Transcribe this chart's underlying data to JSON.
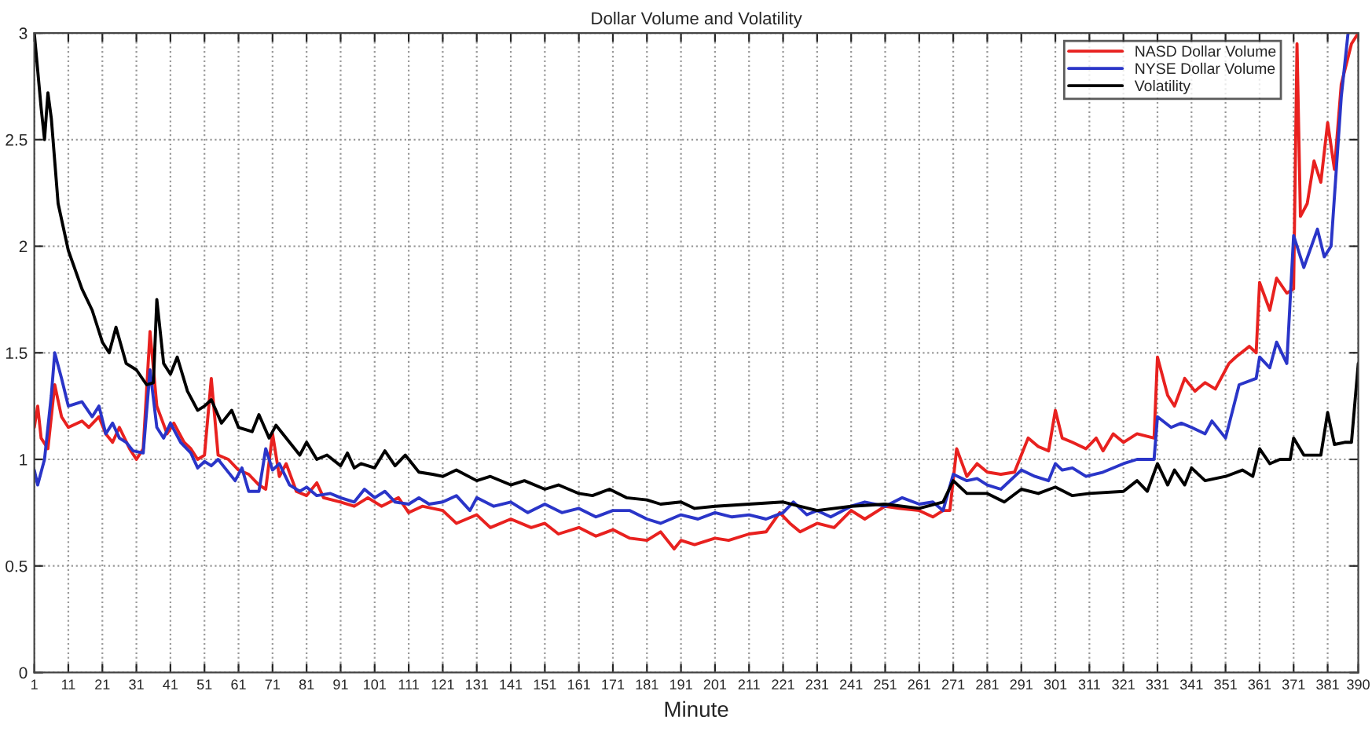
{
  "chart_data": {
    "type": "line",
    "title": "Dollar Volume and Volatility",
    "xlabel": "Minute",
    "xlim": [
      1,
      390
    ],
    "xticks": [
      1,
      11,
      21,
      31,
      41,
      51,
      61,
      71,
      81,
      91,
      101,
      111,
      121,
      131,
      141,
      151,
      161,
      171,
      181,
      191,
      201,
      211,
      221,
      231,
      241,
      251,
      261,
      271,
      281,
      291,
      301,
      311,
      321,
      331,
      341,
      351,
      361,
      371,
      381,
      390
    ],
    "ylim": [
      0,
      3
    ],
    "yticks": [
      0,
      0.5,
      1,
      1.5,
      2,
      2.5,
      3
    ],
    "grid": true,
    "legend": "top right",
    "line_style": "solid",
    "marker": "none",
    "series": [
      {
        "name": "NASD Dollar Volume",
        "color": "#e8211f",
        "x": [
          1,
          2,
          3,
          5,
          7,
          9,
          11,
          15,
          17,
          20,
          22,
          24,
          26,
          29,
          31,
          33,
          35,
          37,
          40,
          42,
          45,
          47,
          49,
          51,
          53,
          55,
          58,
          61,
          64,
          67,
          69,
          71,
          73,
          75,
          78,
          81,
          84,
          86,
          91,
          95,
          99,
          103,
          108,
          111,
          115,
          121,
          125,
          131,
          135,
          141,
          147,
          151,
          155,
          161,
          166,
          171,
          176,
          181,
          185,
          189,
          191,
          195,
          201,
          205,
          211,
          216,
          220,
          223,
          226,
          231,
          236,
          241,
          245,
          251,
          255,
          261,
          265,
          268,
          270,
          272,
          275,
          278,
          281,
          285,
          289,
          291,
          293,
          296,
          299,
          301,
          303,
          306,
          310,
          313,
          315,
          318,
          321,
          325,
          330,
          331,
          334,
          336,
          339,
          342,
          345,
          348,
          352,
          354,
          358,
          360,
          361,
          364,
          366,
          369,
          371,
          372,
          373,
          375,
          377,
          379,
          381,
          383,
          385,
          388,
          390
        ],
        "values": [
          1.15,
          1.25,
          1.1,
          1.05,
          1.35,
          1.2,
          1.15,
          1.18,
          1.15,
          1.2,
          1.12,
          1.08,
          1.15,
          1.05,
          1.0,
          1.05,
          1.6,
          1.25,
          1.12,
          1.17,
          1.08,
          1.05,
          1.0,
          1.02,
          1.38,
          1.02,
          1.0,
          0.95,
          0.93,
          0.88,
          0.86,
          1.12,
          0.92,
          0.98,
          0.85,
          0.83,
          0.89,
          0.82,
          0.8,
          0.78,
          0.82,
          0.78,
          0.82,
          0.75,
          0.78,
          0.76,
          0.7,
          0.74,
          0.68,
          0.72,
          0.68,
          0.7,
          0.65,
          0.68,
          0.64,
          0.67,
          0.63,
          0.62,
          0.66,
          0.58,
          0.62,
          0.6,
          0.63,
          0.62,
          0.65,
          0.66,
          0.75,
          0.7,
          0.66,
          0.7,
          0.68,
          0.76,
          0.72,
          0.78,
          0.77,
          0.76,
          0.73,
          0.76,
          0.76,
          1.05,
          0.92,
          0.98,
          0.94,
          0.93,
          0.94,
          1.02,
          1.1,
          1.06,
          1.04,
          1.23,
          1.1,
          1.08,
          1.05,
          1.1,
          1.04,
          1.12,
          1.08,
          1.12,
          1.1,
          1.48,
          1.3,
          1.25,
          1.38,
          1.32,
          1.36,
          1.33,
          1.45,
          1.48,
          1.53,
          1.5,
          1.83,
          1.7,
          1.85,
          1.78,
          1.8,
          2.95,
          2.14,
          2.2,
          2.4,
          2.3,
          2.58,
          2.36,
          2.76,
          2.95,
          3.0
        ]
      },
      {
        "name": "NYSE Dollar Volume",
        "color": "#2a35c8",
        "x": [
          1,
          2,
          4,
          6,
          7,
          9,
          11,
          15,
          18,
          20,
          22,
          24,
          26,
          28,
          30,
          33,
          35,
          37,
          39,
          41,
          44,
          47,
          49,
          51,
          53,
          55,
          57,
          60,
          62,
          64,
          67,
          69,
          71,
          73,
          76,
          79,
          81,
          84,
          88,
          91,
          95,
          98,
          101,
          104,
          107,
          111,
          114,
          117,
          121,
          125,
          129,
          131,
          136,
          141,
          146,
          151,
          156,
          161,
          166,
          171,
          176,
          181,
          185,
          191,
          196,
          201,
          206,
          211,
          216,
          221,
          224,
          228,
          231,
          235,
          241,
          245,
          251,
          256,
          261,
          265,
          268,
          271,
          275,
          278,
          281,
          285,
          291,
          295,
          299,
          301,
          303,
          306,
          310,
          315,
          321,
          325,
          330,
          331,
          335,
          338,
          341,
          345,
          347,
          351,
          355,
          360,
          361,
          364,
          366,
          369,
          371,
          374,
          378,
          380,
          382,
          385,
          387
        ],
        "values": [
          0.95,
          0.88,
          1.0,
          1.3,
          1.5,
          1.38,
          1.25,
          1.27,
          1.2,
          1.25,
          1.12,
          1.17,
          1.1,
          1.08,
          1.04,
          1.03,
          1.42,
          1.15,
          1.1,
          1.17,
          1.08,
          1.03,
          0.96,
          0.99,
          0.97,
          1.0,
          0.96,
          0.9,
          0.96,
          0.85,
          0.85,
          1.05,
          0.95,
          0.98,
          0.88,
          0.85,
          0.87,
          0.83,
          0.84,
          0.82,
          0.8,
          0.86,
          0.82,
          0.85,
          0.8,
          0.79,
          0.82,
          0.79,
          0.8,
          0.83,
          0.76,
          0.82,
          0.78,
          0.8,
          0.75,
          0.79,
          0.75,
          0.77,
          0.73,
          0.76,
          0.76,
          0.72,
          0.7,
          0.74,
          0.72,
          0.75,
          0.73,
          0.74,
          0.72,
          0.75,
          0.8,
          0.74,
          0.76,
          0.73,
          0.78,
          0.8,
          0.78,
          0.82,
          0.79,
          0.8,
          0.76,
          0.93,
          0.9,
          0.91,
          0.88,
          0.86,
          0.95,
          0.92,
          0.9,
          0.98,
          0.95,
          0.96,
          0.92,
          0.94,
          0.98,
          1.0,
          1.0,
          1.2,
          1.15,
          1.17,
          1.15,
          1.12,
          1.18,
          1.1,
          1.35,
          1.38,
          1.48,
          1.43,
          1.55,
          1.45,
          2.05,
          1.9,
          2.08,
          1.95,
          2.0,
          2.7,
          3.0
        ]
      },
      {
        "name": "Volatility",
        "color": "#000000",
        "x": [
          1,
          3,
          4,
          5,
          6,
          8,
          11,
          15,
          18,
          21,
          23,
          25,
          28,
          31,
          34,
          36,
          37,
          39,
          41,
          43,
          46,
          49,
          51,
          53,
          56,
          59,
          61,
          65,
          67,
          70,
          72,
          76,
          79,
          81,
          84,
          87,
          91,
          93,
          95,
          97,
          101,
          104,
          107,
          110,
          114,
          118,
          121,
          125,
          131,
          135,
          141,
          145,
          151,
          155,
          161,
          165,
          170,
          175,
          181,
          185,
          191,
          195,
          201,
          211,
          221,
          231,
          241,
          251,
          261,
          268,
          271,
          275,
          281,
          286,
          291,
          296,
          301,
          306,
          311,
          321,
          325,
          328,
          331,
          334,
          336,
          339,
          341,
          345,
          351,
          356,
          359,
          361,
          364,
          367,
          370,
          371,
          374,
          379,
          381,
          383,
          386,
          388,
          390
        ],
        "values": [
          3.0,
          2.65,
          2.5,
          2.72,
          2.6,
          2.2,
          1.98,
          1.8,
          1.7,
          1.55,
          1.5,
          1.62,
          1.45,
          1.42,
          1.35,
          1.36,
          1.75,
          1.45,
          1.4,
          1.48,
          1.32,
          1.23,
          1.25,
          1.28,
          1.17,
          1.23,
          1.15,
          1.13,
          1.21,
          1.1,
          1.16,
          1.08,
          1.02,
          1.08,
          1.0,
          1.02,
          0.97,
          1.03,
          0.96,
          0.98,
          0.96,
          1.04,
          0.97,
          1.02,
          0.94,
          0.93,
          0.92,
          0.95,
          0.9,
          0.92,
          0.88,
          0.9,
          0.86,
          0.88,
          0.84,
          0.83,
          0.86,
          0.82,
          0.81,
          0.79,
          0.8,
          0.77,
          0.78,
          0.79,
          0.8,
          0.76,
          0.78,
          0.79,
          0.77,
          0.8,
          0.9,
          0.84,
          0.84,
          0.8,
          0.86,
          0.84,
          0.87,
          0.83,
          0.84,
          0.85,
          0.9,
          0.85,
          0.98,
          0.88,
          0.95,
          0.88,
          0.96,
          0.9,
          0.92,
          0.95,
          0.92,
          1.05,
          0.98,
          1.0,
          1.0,
          1.1,
          1.02,
          1.02,
          1.22,
          1.07,
          1.08,
          1.08,
          1.45
        ]
      }
    ]
  }
}
